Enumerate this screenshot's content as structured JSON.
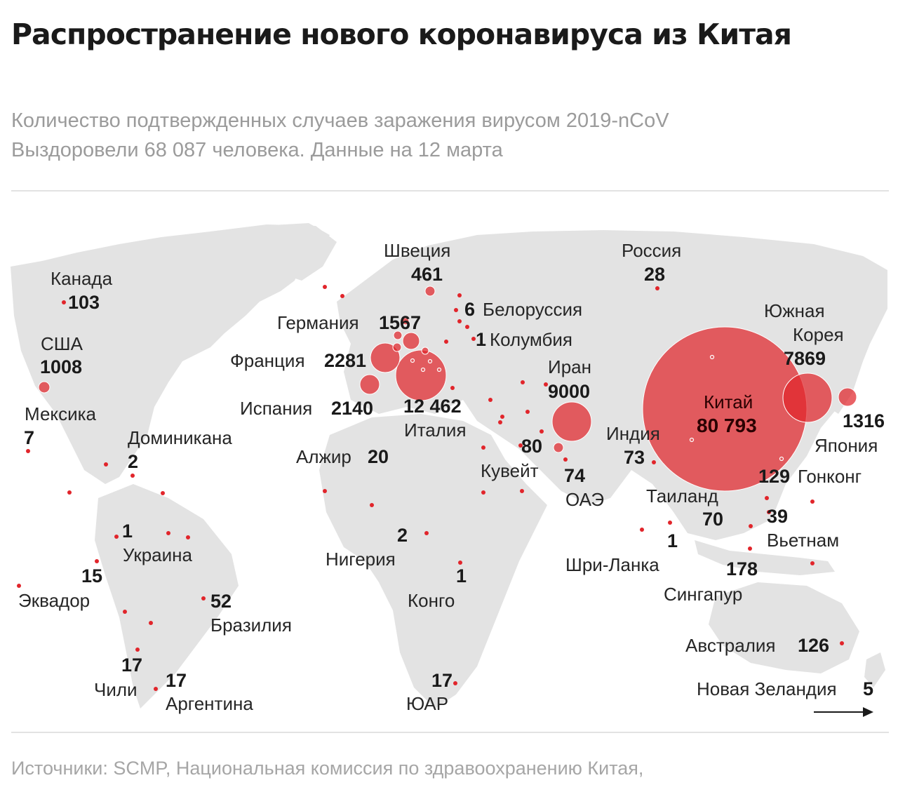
{
  "header": {
    "title": "Распространение нового коронавируса из Китая",
    "subtitle_1": "Количество подтвержденных случаев заражения вирусом 2019-nCoV",
    "subtitle_2": "Выздоровели 68 087 человека. Данные на 12 марта"
  },
  "footer": {
    "source": "Источники: SCMP, Национальная комиссия по здравоохранению Китая,"
  },
  "colors": {
    "bubble": "#e1252b",
    "land": "#e3e3e3",
    "text": "#1a1a1a",
    "muted": "#9b9b9b"
  },
  "icons": {
    "scroll_arrow": "right-arrow-icon"
  },
  "map": {
    "countries": [
      {
        "name": "Китай",
        "cases": "80 793"
      },
      {
        "name": "Италия",
        "cases": "12 462"
      },
      {
        "name": "Иран",
        "cases": "9000"
      },
      {
        "name": "Южная Корея",
        "cases": "7869"
      },
      {
        "name": "Франция",
        "cases": "2281"
      },
      {
        "name": "Испания",
        "cases": "2140"
      },
      {
        "name": "Германия",
        "cases": "1567"
      },
      {
        "name": "Япония",
        "cases": "1316"
      },
      {
        "name": "США",
        "cases": "1008"
      },
      {
        "name": "Швеция",
        "cases": "461"
      },
      {
        "name": "Сингапур",
        "cases": "178"
      },
      {
        "name": "Гонконг",
        "cases": "129"
      },
      {
        "name": "Австралия",
        "cases": "126"
      },
      {
        "name": "Канада",
        "cases": "103"
      },
      {
        "name": "Кувейт",
        "cases": "80"
      },
      {
        "name": "ОАЭ",
        "cases": "74"
      },
      {
        "name": "Индия",
        "cases": "73"
      },
      {
        "name": "Таиланд",
        "cases": "70"
      },
      {
        "name": "Бразилия",
        "cases": "52"
      },
      {
        "name": "Вьетнам",
        "cases": "39"
      },
      {
        "name": "Россия",
        "cases": "28"
      },
      {
        "name": "Алжир",
        "cases": "20"
      },
      {
        "name": "Аргентина",
        "cases": "17"
      },
      {
        "name": "Чили",
        "cases": "17"
      },
      {
        "name": "ЮАР",
        "cases": "17"
      },
      {
        "name": "Эквадор",
        "cases": "15"
      },
      {
        "name": "Мексика",
        "cases": "7"
      },
      {
        "name": "Белоруссия",
        "cases": "6"
      },
      {
        "name": "Новая Зеландия",
        "cases": "5"
      },
      {
        "name": "Доминикана",
        "cases": "2"
      },
      {
        "name": "Нигерия",
        "cases": "2"
      },
      {
        "name": "Украина",
        "cases": "1"
      },
      {
        "name": "Колумбия",
        "cases": "1"
      },
      {
        "name": "Конго",
        "cases": "1"
      },
      {
        "name": "Шри-Ланка",
        "cases": "1"
      }
    ]
  }
}
